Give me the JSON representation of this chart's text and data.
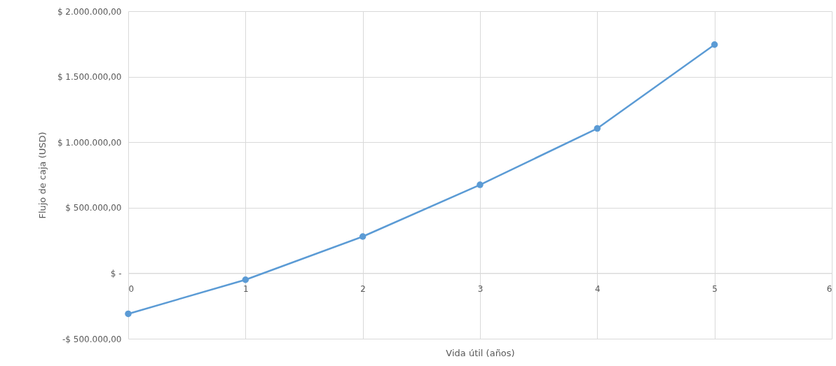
{
  "chart_data": {
    "type": "line",
    "xlabel": "Vida útil (años)",
    "ylabel": "Flujo de caja (USD)",
    "x": [
      0,
      1,
      2,
      3,
      4,
      5
    ],
    "series": [
      {
        "color": "#5b9bd5",
        "values": [
          -310000,
          -50000,
          280000,
          675000,
          1105000,
          1745000
        ]
      }
    ],
    "xlim": [
      0,
      6
    ],
    "xticks": [
      0,
      1,
      2,
      3,
      4,
      5,
      6
    ],
    "ylim": [
      -500000,
      2000000
    ],
    "yticks": [
      {
        "value": -500000,
        "label": "-$ 500.000,00"
      },
      {
        "value": 0,
        "label": "$ -"
      },
      {
        "value": 500000,
        "label": "$ 500.000,00"
      },
      {
        "value": 1000000,
        "label": "$ 1.000.000,00"
      },
      {
        "value": 1500000,
        "label": "$ 1.500.000,00"
      },
      {
        "value": 2000000,
        "label": "$ 2.000.000,00"
      }
    ],
    "grid": true,
    "marker": "circle",
    "line_style": "solid"
  }
}
